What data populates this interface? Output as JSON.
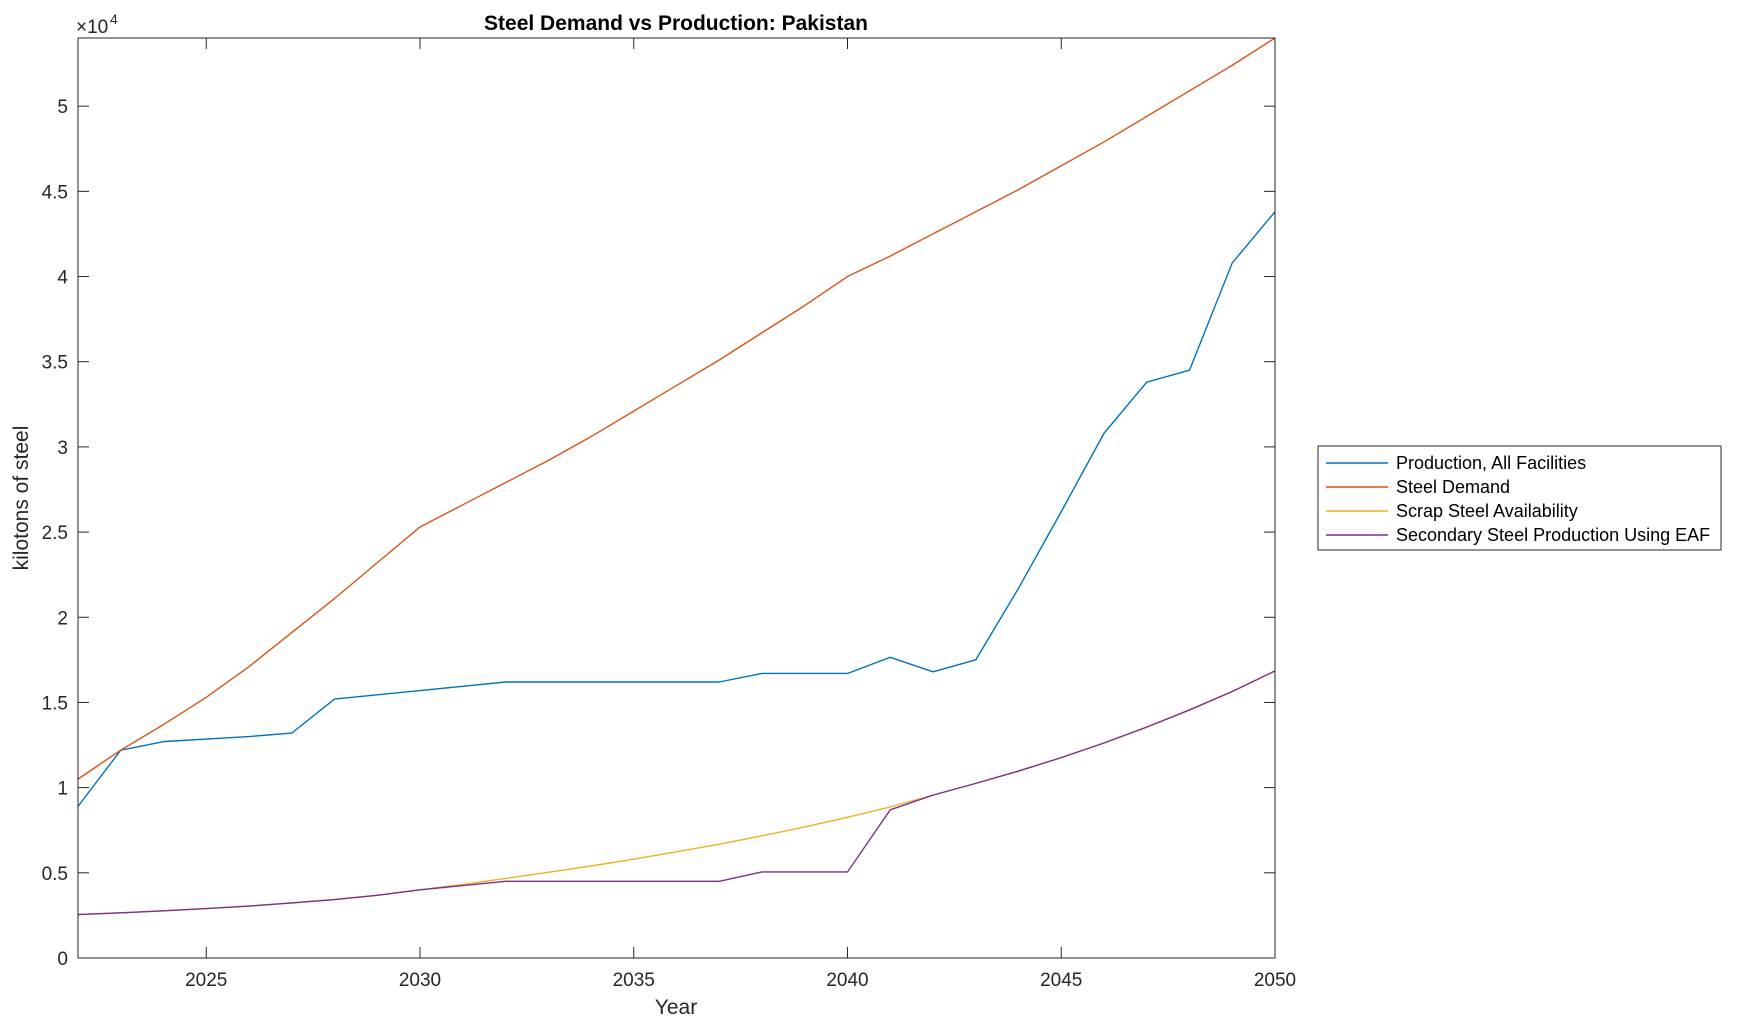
{
  "chart_data": {
    "type": "line",
    "title": "Steel Demand vs Production: Pakistan",
    "xlabel": "Year",
    "ylabel": "kilotons of steel",
    "xlim": [
      2022,
      2050
    ],
    "ylim": [
      0,
      54000
    ],
    "y_exponent_label": "×10",
    "y_exponent_power": "4",
    "x_ticks": [
      2025,
      2030,
      2035,
      2040,
      2045,
      2050
    ],
    "x_tick_labels": [
      "2025",
      "2030",
      "2035",
      "2040",
      "2045",
      "2050"
    ],
    "y_ticks": [
      0,
      5000,
      10000,
      15000,
      20000,
      25000,
      30000,
      35000,
      40000,
      45000,
      50000
    ],
    "y_tick_labels": [
      "0",
      "0.5",
      "1",
      "1.5",
      "2",
      "2.5",
      "3",
      "3.5",
      "4",
      "4.5",
      "5"
    ],
    "grid": false,
    "legend_position": "outside-right",
    "x": [
      2022,
      2023,
      2024,
      2025,
      2026,
      2027,
      2028,
      2029,
      2030,
      2031,
      2032,
      2033,
      2034,
      2035,
      2036,
      2037,
      2038,
      2039,
      2040,
      2041,
      2042,
      2043,
      2044,
      2045,
      2046,
      2047,
      2048,
      2049,
      2050
    ],
    "series": [
      {
        "name": "Production, All Facilities",
        "color": "#0072BD",
        "values": [
          8900,
          12200,
          12700,
          12850,
          13000,
          13200,
          15200,
          15450,
          15700,
          15950,
          16200,
          16200,
          16200,
          16200,
          16200,
          16200,
          16700,
          16700,
          16700,
          17650,
          16800,
          17500,
          21700,
          26200,
          30800,
          33800,
          34500,
          40800,
          43800
        ]
      },
      {
        "name": "Steel Demand",
        "color": "#D95319",
        "values": [
          10500,
          12200,
          13700,
          15300,
          17100,
          19100,
          21100,
          23200,
          25300,
          26600,
          27900,
          29200,
          30600,
          32100,
          33600,
          35100,
          36700,
          38300,
          40000,
          41200,
          42500,
          43800,
          45100,
          46500,
          47900,
          49400,
          50900,
          52400,
          54000
        ]
      },
      {
        "name": "Scrap Steel Availability",
        "color": "#EDB120",
        "values": [
          2550,
          2650,
          2770,
          2900,
          3050,
          3230,
          3430,
          3680,
          4000,
          4320,
          4670,
          5030,
          5400,
          5800,
          6230,
          6680,
          7170,
          7690,
          8260,
          8870,
          9560,
          10250,
          10970,
          11760,
          12620,
          13550,
          14560,
          15640,
          16850
        ]
      },
      {
        "name": "Secondary Steel Production Using EAF",
        "color": "#7E2F8E",
        "values": [
          2550,
          2650,
          2770,
          2900,
          3050,
          3230,
          3430,
          3680,
          4000,
          4250,
          4500,
          4500,
          4500,
          4500,
          4500,
          4500,
          5050,
          5050,
          5050,
          8700,
          9560,
          10250,
          10970,
          11760,
          12620,
          13550,
          14560,
          15640,
          16850
        ]
      }
    ]
  }
}
